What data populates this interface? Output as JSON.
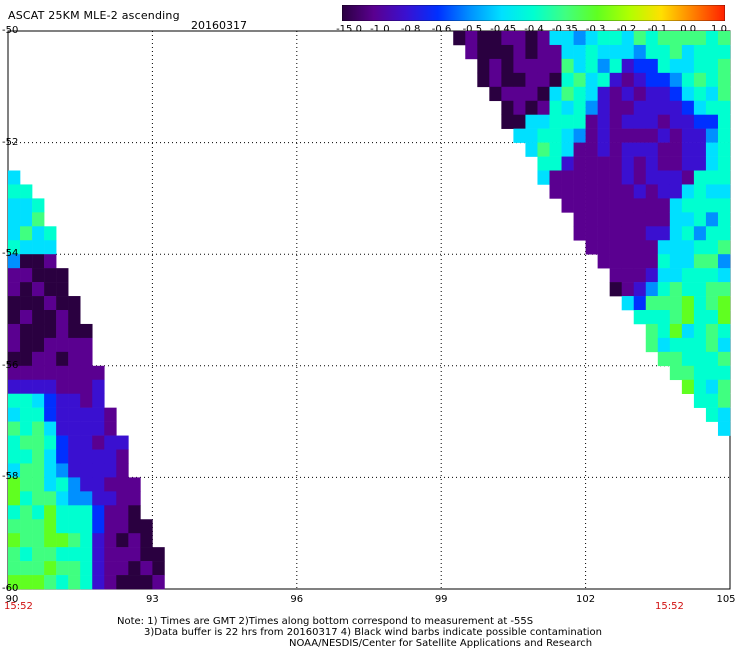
{
  "header": {
    "title": "ASCAT 25KM MLE-2 ascending",
    "date": "20160317"
  },
  "colorbar": {
    "labels": [
      "-15.0",
      "-1.0",
      "-0.8",
      "-0.6",
      "-0.5",
      "-0.45",
      "-0.4",
      "-0.35",
      "-0.3",
      "-0.2",
      "-0.1",
      "0.0",
      "1.0"
    ],
    "colors": [
      "#2a0040",
      "#5a0090",
      "#3a10d0",
      "#0030ff",
      "#0090ff",
      "#00e0ff",
      "#00ffd0",
      "#40ff80",
      "#60ff20",
      "#b0ff00",
      "#ffe000",
      "#ff8000",
      "#ff2000"
    ]
  },
  "axes": {
    "xmin": 90,
    "xmax": 105,
    "ymin": -60,
    "ymax": -50,
    "xticks": [
      "90",
      "93",
      "96",
      "99",
      "102",
      "105"
    ],
    "yticks": [
      "-50",
      "-52",
      "-54",
      "-56",
      "-58",
      "-60"
    ],
    "grid": true
  },
  "times": {
    "left": "15:52",
    "right": "15:52"
  },
  "notes": [
    "Note: 1) Times are GMT 2)Times along bottom correspond to measurement at -55S",
    "3)Data buffer is 22 hrs from 20160317 4) Black wind barbs indicate possible contamination",
    "NOAA/NESDIS/Center for Satellite Applications and Research"
  ],
  "map_data": {
    "swaths": [
      {
        "name": "west",
        "edge": [
          [
            90,
            -52.3
          ],
          [
            90.7,
            -53.2
          ],
          [
            91.3,
            -54.6
          ],
          [
            91.9,
            -56.0
          ],
          [
            92.4,
            -57.4
          ],
          [
            92.9,
            -58.8
          ],
          [
            93.4,
            -60.0
          ],
          [
            90,
            -60.0
          ]
        ],
        "features": [
          {
            "lon": 90.8,
            "lat": -55.2,
            "value": -1.0
          },
          {
            "lon": 91.8,
            "lat": -57.2,
            "value": -0.8
          },
          {
            "lon": 92.8,
            "lat": -59.5,
            "value": -1.0
          },
          {
            "lon": 90.6,
            "lat": -57.6,
            "value": -0.35
          },
          {
            "lon": 90.9,
            "lat": -59.3,
            "value": -0.3
          }
        ]
      },
      {
        "name": "east",
        "edge": [
          [
            99.3,
            -50.0
          ],
          [
            105,
            -50.0
          ],
          [
            105,
            -57.5
          ],
          [
            104.6,
            -57.0
          ],
          [
            103.5,
            -55.8
          ],
          [
            102.5,
            -54.5
          ],
          [
            101.6,
            -53.3
          ],
          [
            100.8,
            -52.2
          ],
          [
            99.9,
            -51.0
          ]
        ],
        "features": [
          {
            "lon": 103.3,
            "lat": -51.8,
            "value": -0.8
          },
          {
            "lon": 102.4,
            "lat": -53.3,
            "value": -0.8
          },
          {
            "lon": 100.2,
            "lat": -50.6,
            "value": -1.0
          },
          {
            "lon": 102.1,
            "lat": -53.8,
            "value": -1.0
          },
          {
            "lon": 104.3,
            "lat": -50.5,
            "value": -0.35
          },
          {
            "lon": 104.2,
            "lat": -55.5,
            "value": -0.35
          }
        ]
      }
    ]
  }
}
